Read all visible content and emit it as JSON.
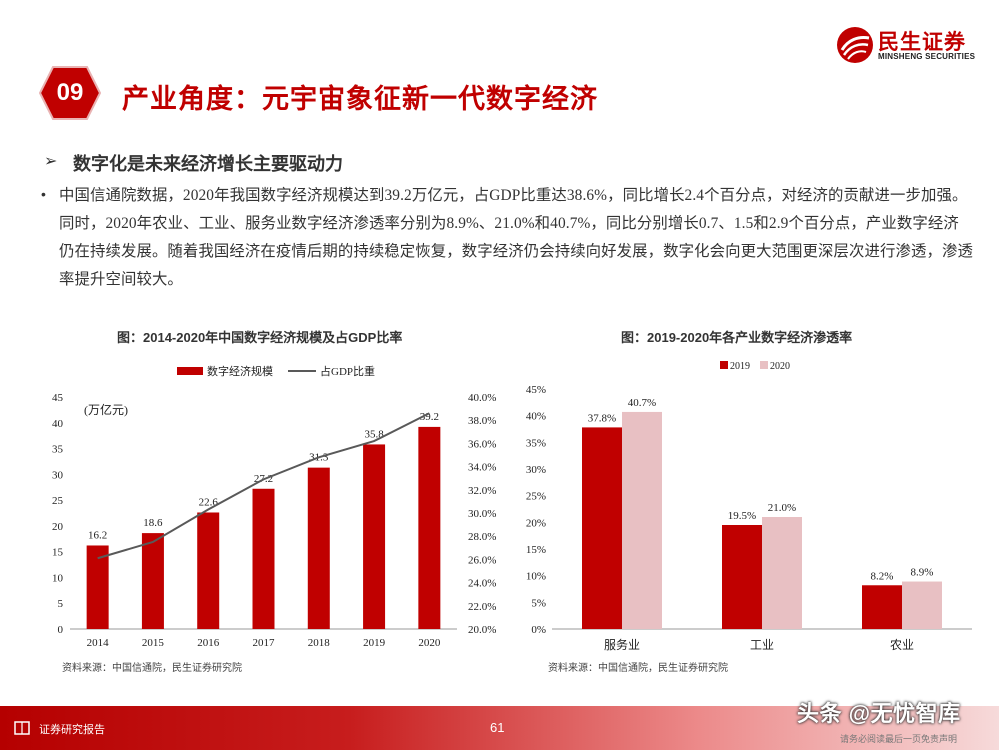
{
  "brand": {
    "name_cn": "民生证券",
    "name_en": "MINSHENG SECURITIES"
  },
  "section": {
    "number": "09",
    "title": "产业角度：元宇宙象征新一代数字经济"
  },
  "subtitle": {
    "arrow": "➢",
    "text": "数字化是未来经济增长主要驱动力"
  },
  "body": {
    "bullet": "•",
    "text": "中国信通院数据，2020年我国数字经济规模达到39.2万亿元，占GDP比重达38.6%，同比增长2.4个百分点，对经济的贡献进一步加强。同时，2020年农业、工业、服务业数字经济渗透率分别为8.9%、21.0%和40.7%，同比分别增长0.7、1.5和2.9个百分点，产业数字经济仍在持续发展。随着我国经济在疫情后期的持续稳定恢复，数字经济仍会持续向好发展，数字化会向更大范围更深层次进行渗透，渗透率提升空间较大。"
  },
  "chart_data": [
    {
      "type": "bar+line",
      "title": "图：2014-2020年中国数字经济规模及占GDP比率",
      "unit_label": "(万亿元)",
      "categories": [
        "2014",
        "2015",
        "2016",
        "2017",
        "2018",
        "2019",
        "2020"
      ],
      "series": [
        {
          "name": "数字经济规模",
          "type": "bar",
          "axis": "left",
          "color": "#c00000",
          "values": [
            16.2,
            18.6,
            22.6,
            27.2,
            31.3,
            35.8,
            39.2
          ]
        },
        {
          "name": "占GDP比重",
          "type": "line",
          "axis": "right",
          "color": "#595959",
          "values": [
            26.1,
            27.5,
            30.3,
            32.9,
            34.8,
            36.2,
            38.6
          ]
        }
      ],
      "y_left": {
        "min": 0,
        "max": 45,
        "ticks": [
          "0",
          "5",
          "10",
          "15",
          "20",
          "25",
          "30",
          "35",
          "40",
          "45"
        ]
      },
      "y_right": {
        "min": 20,
        "max": 40,
        "ticks": [
          "20.0%",
          "22.0%",
          "24.0%",
          "26.0%",
          "28.0%",
          "30.0%",
          "32.0%",
          "34.0%",
          "36.0%",
          "38.0%",
          "40.0%"
        ]
      },
      "legend_position": "top",
      "grid": false,
      "source": "资料来源：中国信通院，民生证券研究院"
    },
    {
      "type": "bar",
      "title": "图：2019-2020年各产业数字经济渗透率",
      "categories": [
        "服务业",
        "工业",
        "农业"
      ],
      "series": [
        {
          "name": "2019",
          "color": "#c00000",
          "values": [
            37.8,
            19.5,
            8.2
          ],
          "labels": [
            "37.8%",
            "19.5%",
            "8.2%"
          ]
        },
        {
          "name": "2020",
          "color": "#e8c0c3",
          "values": [
            40.7,
            21.0,
            8.9
          ],
          "labels": [
            "40.7%",
            "21.0%",
            "8.9%"
          ]
        }
      ],
      "y": {
        "min": 0,
        "max": 45,
        "ticks": [
          "0%",
          "5%",
          "10%",
          "15%",
          "20%",
          "25%",
          "30%",
          "35%",
          "40%",
          "45%"
        ]
      },
      "legend_position": "top",
      "grid": false,
      "source": "资料来源：中国信通院，民生证券研究院"
    }
  ],
  "footer": {
    "label": "证券研究报告",
    "page": "61",
    "note": "请务必阅读最后一页免责声明"
  },
  "watermark": "头条 @无忧智库"
}
